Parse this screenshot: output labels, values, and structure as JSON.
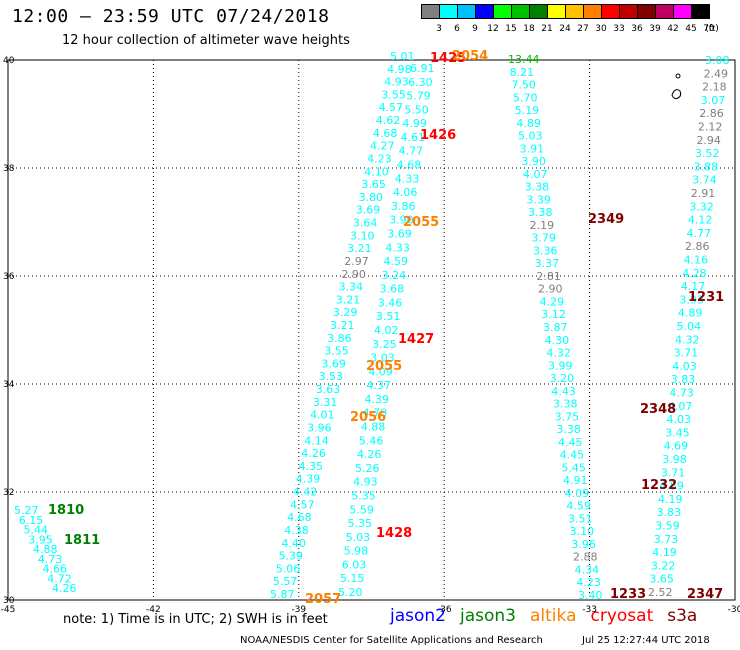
{
  "header": {
    "title": "12:00 – 23:59 UTC 07/24/2018",
    "subtitle": "12 hour collection of altimeter wave heights"
  },
  "legend": {
    "unit": "(ft)",
    "items": [
      {
        "label": "3",
        "color": "#808080"
      },
      {
        "label": "6",
        "color": "#00ffff"
      },
      {
        "label": "9",
        "color": "#00bfff"
      },
      {
        "label": "12",
        "color": "#0000ff"
      },
      {
        "label": "15",
        "color": "#00ff00"
      },
      {
        "label": "18",
        "color": "#00c000"
      },
      {
        "label": "21",
        "color": "#008000"
      },
      {
        "label": "24",
        "color": "#ffff00"
      },
      {
        "label": "27",
        "color": "#ffc000"
      },
      {
        "label": "30",
        "color": "#ff8000"
      },
      {
        "label": "33",
        "color": "#ff0000"
      },
      {
        "label": "36",
        "color": "#c00000"
      },
      {
        "label": "39",
        "color": "#800000"
      },
      {
        "label": "42",
        "color": "#c00060"
      },
      {
        "label": "45",
        "color": "#ff00ff"
      },
      {
        "label": "70",
        "color": "#000000"
      }
    ]
  },
  "axes": {
    "lon_ticks": [
      "-45",
      "-42",
      "-39",
      "-36",
      "-33",
      "-30"
    ],
    "lat_ticks": [
      "40",
      "38",
      "36",
      "34",
      "32",
      "30"
    ]
  },
  "swh_labels": {
    "pass1": [
      "5.27",
      "6.15",
      "5.44",
      "3.95",
      "4.88",
      "4.73",
      "4.66",
      "4.72",
      "4.26"
    ],
    "pass2": [
      "5.01",
      "4.98",
      "4.93",
      "3.55",
      "4.57",
      "4.62",
      "4.68",
      "4.27",
      "4.23",
      "4.10",
      "3.65",
      "3.80",
      "3.69",
      "3.64",
      "3.10",
      "3.21",
      "2.97",
      "2.90",
      "3.34",
      "3.21",
      "3.29",
      "3.21",
      "3.86",
      "3.55",
      "3.69",
      "3.53",
      "3.63",
      "3.31",
      "4.01",
      "3.96",
      "4.14",
      "4.26",
      "4.35",
      "4.39",
      "4.42",
      "4.57",
      "4.68",
      "4.38",
      "4.40",
      "5.39",
      "5.06",
      "5.57",
      "5.87"
    ],
    "pass3": [
      "6.91",
      "6.30",
      "5.79",
      "5.50",
      "4.99",
      "4.61",
      "4.77",
      "4.68",
      "4.33",
      "4.06",
      "3.86",
      "3.90",
      "3.69",
      "4.33",
      "4.59",
      "3.24",
      "3.68",
      "3.46",
      "3.51",
      "4.02",
      "3.25",
      "3.03",
      "4.09",
      "4.37",
      "4.39",
      "4.70",
      "4.88",
      "5.46",
      "4.26",
      "5.26",
      "4.93",
      "5.35",
      "5.59",
      "5.35",
      "5.03",
      "5.98",
      "6.03",
      "5.15",
      "5.20"
    ],
    "pass4": [
      "13.44",
      "8.21",
      "7.50",
      "5.70",
      "5.19",
      "4.89",
      "5.03",
      "3.91",
      "3.90",
      "4.07",
      "3.38",
      "3.39",
      "3.38",
      "2.19",
      "3.79",
      "3.36",
      "3.37",
      "2.81",
      "2.90",
      "4.29",
      "3.12",
      "3.87",
      "4.30",
      "4.32",
      "3.99",
      "3.20",
      "4.43",
      "3.38",
      "3.75",
      "3.38",
      "4.45",
      "4.45",
      "5.45",
      "4.91",
      "4.09",
      "4.59",
      "3.51",
      "3.10",
      "3.96",
      "2.88",
      "4.34",
      "4.23",
      "3.40"
    ],
    "pass5": [
      "3.08",
      "2.49",
      "2.18",
      "3.07",
      "2.86",
      "2.12",
      "2.94",
      "3.52",
      "3.88",
      "3.74",
      "2.91",
      "3.32",
      "4.12",
      "4.77",
      "2.86",
      "4.16",
      "4.28",
      "4.17",
      "3.93",
      "4.89",
      "5.04",
      "4.32",
      "3.71",
      "4.03",
      "3.83",
      "4.73",
      "4.07",
      "4.03",
      "3.45",
      "4.69",
      "3.98",
      "3.71",
      "4.59",
      "4.19",
      "3.83",
      "3.59",
      "3.73",
      "4.19",
      "3.22",
      "3.65",
      "2.52"
    ]
  },
  "time_labels": [
    {
      "text": "1810",
      "sat": "jason3"
    },
    {
      "text": "1811",
      "sat": "jason3"
    },
    {
      "text": "1425",
      "sat": "cryosat"
    },
    {
      "text": "2054",
      "sat": "altika"
    },
    {
      "text": "1426",
      "sat": "cryosat"
    },
    {
      "text": "2055",
      "sat": "altika"
    },
    {
      "text": "1427",
      "sat": "cryosat"
    },
    {
      "text": "2055",
      "sat": "altika"
    },
    {
      "text": "2056",
      "sat": "altika"
    },
    {
      "text": "1428",
      "sat": "cryosat"
    },
    {
      "text": "2057",
      "sat": "altika"
    },
    {
      "text": "2349",
      "sat": "s3a"
    },
    {
      "text": "2348",
      "sat": "s3a"
    },
    {
      "text": "2347",
      "sat": "s3a"
    },
    {
      "text": "1231",
      "sat": "s3a"
    },
    {
      "text": "1232",
      "sat": "s3a"
    },
    {
      "text": "1233",
      "sat": "s3a"
    }
  ],
  "sat_colors": {
    "jason2": "#0000ff",
    "jason3": "#008000",
    "altika": "#ff8000",
    "cryosat": "#ff0000",
    "s3a": "#800000",
    "low": "#808080",
    "mid": "#00ffff",
    "hi": "#00c000"
  },
  "footer": {
    "note": "note:  1) Time is in UTC;  2) SWH is in feet",
    "satellites": [
      {
        "name": "jason2",
        "color": "#0000ff"
      },
      {
        "name": "jason3",
        "color": "#008000"
      },
      {
        "name": "altika",
        "color": "#ff8000"
      },
      {
        "name": "cryosat",
        "color": "#ff0000"
      },
      {
        "name": "s3a",
        "color": "#800000"
      }
    ],
    "credit": "NOAA/NESDIS Center for Satellite Applications and Research",
    "timestamp": "Jul 25 12:27:44 UTC 2018"
  }
}
